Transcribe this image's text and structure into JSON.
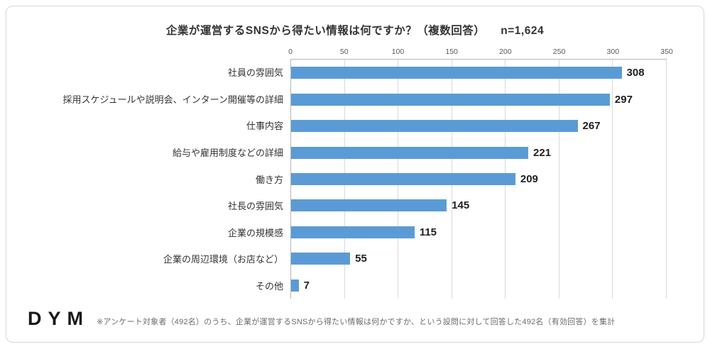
{
  "chart": {
    "title": "企業が運営するSNSから得たい情報は何ですか？（複数回答）",
    "n_label": "n=1,624"
  },
  "chart_data": {
    "type": "bar",
    "orientation": "horizontal",
    "title": "企業が運営するSNSから得たい情報は何ですか？（複数回答）",
    "n": "n=1,624",
    "categories": [
      "社員の雰囲気",
      "採用スケジュールや説明会、インターン開催等の詳細",
      "仕事内容",
      "給与や雇用制度などの詳細",
      "働き方",
      "社長の雰囲気",
      "企業の規模感",
      "企業の周辺環境（お店など）",
      "その他"
    ],
    "values": [
      308,
      297,
      267,
      221,
      209,
      145,
      115,
      55,
      7
    ],
    "xlim": [
      0,
      350
    ],
    "ticks": [
      0,
      50,
      100,
      150,
      200,
      250,
      300,
      350
    ],
    "axis_position": "top",
    "grid": true,
    "bar_color": "#5B9BD5",
    "gridline_color": "#d9d9d9"
  },
  "footer": {
    "logo": "DYM",
    "note": "※アンケート対象者（492名）のうち、企業が運営するSNSから得たい情報は何かですか、という設問に対して回答した492名（有効回答）を集計"
  }
}
